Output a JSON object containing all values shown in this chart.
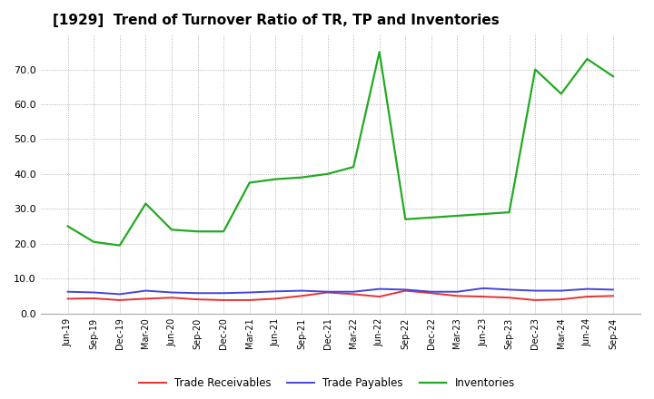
{
  "title": "[1929]  Trend of Turnover Ratio of TR, TP and Inventories",
  "x_labels": [
    "Jun-19",
    "Sep-19",
    "Dec-19",
    "Mar-20",
    "Jun-20",
    "Sep-20",
    "Dec-20",
    "Mar-21",
    "Jun-21",
    "Sep-21",
    "Dec-21",
    "Mar-22",
    "Jun-22",
    "Sep-22",
    "Dec-22",
    "Mar-23",
    "Jun-23",
    "Sep-23",
    "Dec-23",
    "Mar-24",
    "Jun-24",
    "Sep-24"
  ],
  "trade_receivables": [
    4.2,
    4.3,
    3.8,
    4.2,
    4.5,
    4.0,
    3.8,
    3.8,
    4.2,
    5.0,
    6.0,
    5.5,
    4.8,
    6.5,
    5.8,
    5.0,
    4.8,
    4.5,
    3.8,
    4.0,
    4.8,
    5.0
  ],
  "trade_payables": [
    6.2,
    6.0,
    5.5,
    6.5,
    6.0,
    5.8,
    5.8,
    6.0,
    6.3,
    6.5,
    6.2,
    6.2,
    7.0,
    6.8,
    6.2,
    6.2,
    7.2,
    6.8,
    6.5,
    6.5,
    7.0,
    6.8
  ],
  "inventories": [
    25.0,
    20.5,
    19.5,
    31.5,
    24.0,
    23.5,
    23.5,
    37.5,
    38.5,
    39.0,
    40.0,
    42.0,
    75.0,
    27.0,
    27.5,
    28.0,
    28.5,
    29.0,
    70.0,
    63.0,
    73.0,
    68.0
  ],
  "tr_color": "#e83030",
  "tp_color": "#4444dd",
  "inv_color": "#22aa22",
  "ylim": [
    0.0,
    80.0
  ],
  "yticks": [
    0.0,
    10.0,
    20.0,
    30.0,
    40.0,
    50.0,
    60.0,
    70.0
  ],
  "background_color": "#ffffff",
  "plot_bg_color": "#ffffff",
  "grid_color": "#999999",
  "title_fontsize": 11,
  "legend_labels": [
    "Trade Receivables",
    "Trade Payables",
    "Inventories"
  ]
}
